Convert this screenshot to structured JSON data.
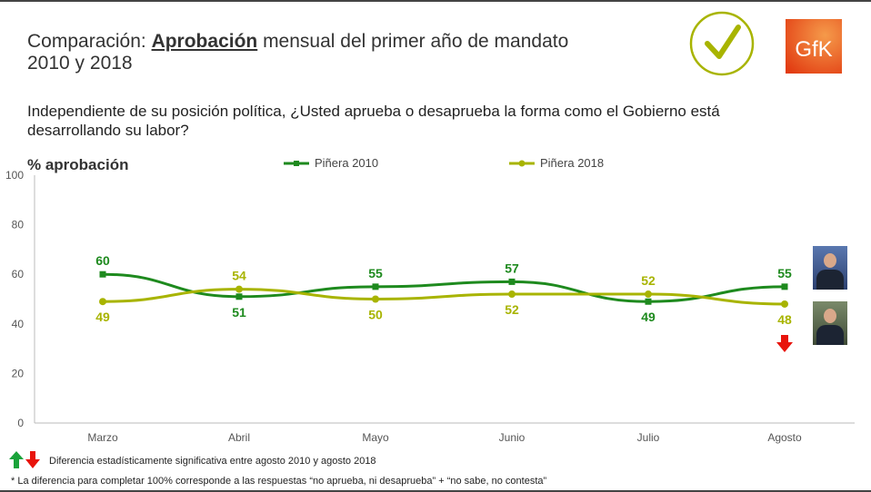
{
  "title": {
    "prefix": "Comparación: ",
    "bold": "Aprobación",
    "suffix": " mensual del primer año de mandato",
    "line2": "2010 y 2018"
  },
  "question": "Independiente de su posición política, ¿Usted aprueba o desaprueba la forma como el Gobierno está desarrollando su labor?",
  "logo": {
    "text": "GfK",
    "color": "#e8501e"
  },
  "check_icon": {
    "name": "check-circle-icon",
    "color": "#a8b400"
  },
  "footnotes": {
    "significance": "Diferencia estadísticamente significativa entre agosto 2010 y agosto 2018",
    "note": "* La diferencia para completar 100% corresponde a las respuestas “no aprueba, ni desaprueba” + “no sabe, no contesta”"
  },
  "chart_data": {
    "type": "line",
    "ylabel": "% aprobación",
    "ylim": [
      0,
      100
    ],
    "yticks": [
      0,
      20,
      40,
      60,
      80,
      100
    ],
    "categories": [
      "Marzo",
      "Abril",
      "Mayo",
      "Junio",
      "Julio",
      "Agosto"
    ],
    "series": [
      {
        "name": "Piñera 2010",
        "values": [
          60,
          51,
          55,
          57,
          49,
          55
        ],
        "color": "#1e8a1e"
      },
      {
        "name": "Piñera 2018",
        "values": [
          49,
          54,
          50,
          52,
          52,
          48
        ],
        "color": "#a8b400"
      }
    ],
    "annotations": [
      {
        "category": "Agosto",
        "series": "Piñera 2018",
        "marker": "down-arrow",
        "color": "#e8140c"
      }
    ],
    "legend": "top",
    "grid": false
  }
}
